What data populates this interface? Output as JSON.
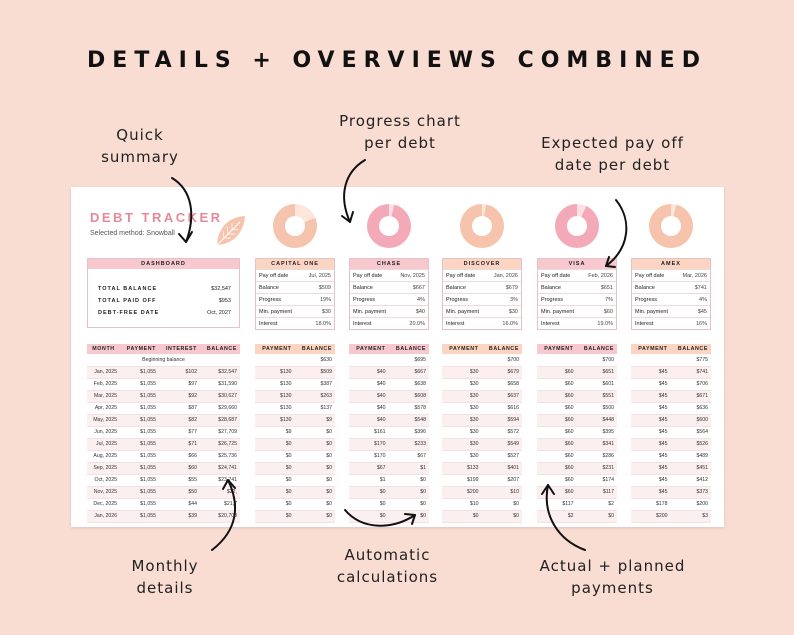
{
  "headline": "DETAILS + OVERVIEWS COMBINED",
  "callouts": {
    "quick_summary": [
      "Quick",
      "summary"
    ],
    "progress_chart": [
      "Progress chart",
      "per debt"
    ],
    "payoff_date": [
      "Expected pay off",
      "date per debt"
    ],
    "monthly_details": [
      "Monthly",
      "details"
    ],
    "auto_calc": [
      "Automatic",
      "calculations"
    ],
    "actual_planned": [
      "Actual + planned",
      "payments"
    ]
  },
  "tracker": {
    "title": "DEBT TRACKER",
    "method": "Selected method: Snowball"
  },
  "colors": {
    "pink": "#f7c9cf",
    "peach": "#fbd5c2",
    "donut_pink": "#f4a9b8",
    "donut_peach": "#f6c3ac"
  },
  "summary": {
    "header": "DASHBOARD",
    "rows": [
      {
        "label": "TOTAL BALANCE",
        "value": "$32,547"
      },
      {
        "label": "TOTAL PAID OFF",
        "value": "$953"
      },
      {
        "label": "DEBT-FREE DATE",
        "value": "Oct, 2027"
      }
    ]
  },
  "debts": [
    {
      "name": "CAPITAL ONE",
      "color": "peach",
      "progress": 0.19,
      "payoff": "Jul, 2025",
      "balance": "$509",
      "progress_label": "19%",
      "min_payment": "$30",
      "interest": "18.0%"
    },
    {
      "name": "CHASE",
      "color": "pink",
      "progress": 0.04,
      "payoff": "Nov, 2025",
      "balance": "$667",
      "progress_label": "4%",
      "min_payment": "$40",
      "interest": "20.0%"
    },
    {
      "name": "DISCOVER",
      "color": "peach",
      "progress": 0.03,
      "payoff": "Jan, 2026",
      "balance": "$679",
      "progress_label": "3%",
      "min_payment": "$30",
      "interest": "16.0%"
    },
    {
      "name": "VISA",
      "color": "pink",
      "progress": 0.07,
      "payoff": "Feb, 2026",
      "balance": "$651",
      "progress_label": "7%",
      "min_payment": "$60",
      "interest": "19.0%"
    },
    {
      "name": "AMEX",
      "color": "peach",
      "progress": 0.04,
      "payoff": "Mar, 2026",
      "balance": "$741",
      "progress_label": "4%",
      "min_payment": "$45",
      "interest": "16%"
    }
  ],
  "debt_row_labels": {
    "payoff": "Pay off date",
    "balance": "Balance",
    "progress": "Progress",
    "min_payment": "Min. payment",
    "interest": "Interest"
  },
  "monthly": {
    "headers": [
      "MONTH",
      "PAYMENT",
      "INTEREST",
      "BALANCE"
    ],
    "beginning": "Beginning balance",
    "rows": [
      [
        "Jan, 2025",
        "$1,055",
        "$102",
        "$32,547"
      ],
      [
        "Feb, 2025",
        "$1,055",
        "$97",
        "$31,590"
      ],
      [
        "Mar, 2025",
        "$1,055",
        "$92",
        "$30,627"
      ],
      [
        "Apr, 2025",
        "$1,055",
        "$87",
        "$29,660"
      ],
      [
        "May, 2025",
        "$1,055",
        "$82",
        "$28,687"
      ],
      [
        "Jun, 2025",
        "$1,055",
        "$77",
        "$27,709"
      ],
      [
        "Jul, 2025",
        "$1,055",
        "$71",
        "$26,725"
      ],
      [
        "Aug, 2025",
        "$1,055",
        "$66",
        "$25,736"
      ],
      [
        "Sep, 2025",
        "$1,055",
        "$60",
        "$24,741"
      ],
      [
        "Oct, 2025",
        "$1,055",
        "$55",
        "$23,741"
      ],
      [
        "Nov, 2025",
        "$1,055",
        "$50",
        "$22,"
      ],
      [
        "Dec, 2025",
        "$1,055",
        "$44",
        "$21,7"
      ],
      [
        "Jan, 2026",
        "$1,055",
        "$39",
        "$20,708"
      ]
    ]
  },
  "debt_tables": [
    {
      "headers": [
        "PAYMENT",
        "BALANCE"
      ],
      "start": "$630",
      "rows": [
        [
          "$130",
          "$509"
        ],
        [
          "$130",
          "$387"
        ],
        [
          "$130",
          "$263"
        ],
        [
          "$130",
          "$137"
        ],
        [
          "$130",
          "$9"
        ],
        [
          "$9",
          "$0"
        ],
        [
          "$0",
          "$0"
        ],
        [
          "$0",
          "$0"
        ],
        [
          "$0",
          "$0"
        ],
        [
          "$0",
          "$0"
        ],
        [
          "$0",
          "$0"
        ],
        [
          "$0",
          "$0"
        ],
        [
          "$0",
          "$0"
        ]
      ]
    },
    {
      "headers": [
        "PAYMENT",
        "BALANCE"
      ],
      "start": "$695",
      "rows": [
        [
          "$40",
          "$667"
        ],
        [
          "$40",
          "$638"
        ],
        [
          "$40",
          "$608"
        ],
        [
          "$40",
          "$578"
        ],
        [
          "$40",
          "$548"
        ],
        [
          "$161",
          "$396"
        ],
        [
          "$170",
          "$233"
        ],
        [
          "$170",
          "$67"
        ],
        [
          "$67",
          "$1"
        ],
        [
          "$1",
          "$0"
        ],
        [
          "$0",
          "$0"
        ],
        [
          "$0",
          "$0"
        ],
        [
          "$0",
          "$0"
        ]
      ]
    },
    {
      "headers": [
        "PAYMENT",
        "BALANCE"
      ],
      "start": "$700",
      "rows": [
        [
          "$30",
          "$679"
        ],
        [
          "$30",
          "$658"
        ],
        [
          "$30",
          "$637"
        ],
        [
          "$30",
          "$616"
        ],
        [
          "$30",
          "$594"
        ],
        [
          "$30",
          "$572"
        ],
        [
          "$30",
          "$549"
        ],
        [
          "$30",
          "$527"
        ],
        [
          "$133",
          "$401"
        ],
        [
          "$199",
          "$207"
        ],
        [
          "$200",
          "$10"
        ],
        [
          "$10",
          "$0"
        ],
        [
          "$0",
          "$0"
        ]
      ]
    },
    {
      "headers": [
        "PAYMENT",
        "BALANCE"
      ],
      "start": "$700",
      "rows": [
        [
          "$60",
          "$651"
        ],
        [
          "$60",
          "$601"
        ],
        [
          "$60",
          "$551"
        ],
        [
          "$60",
          "$500"
        ],
        [
          "$60",
          "$448"
        ],
        [
          "$60",
          "$395"
        ],
        [
          "$60",
          "$341"
        ],
        [
          "$60",
          "$286"
        ],
        [
          "$60",
          "$231"
        ],
        [
          "$60",
          "$174"
        ],
        [
          "$60",
          "$117"
        ],
        [
          "$117",
          "$2"
        ],
        [
          "$2",
          "$0"
        ]
      ]
    },
    {
      "headers": [
        "PAYMENT",
        "BALANCE"
      ],
      "start": "$775",
      "rows": [
        [
          "$45",
          "$741"
        ],
        [
          "$45",
          "$706"
        ],
        [
          "$45",
          "$671"
        ],
        [
          "$45",
          "$636"
        ],
        [
          "$45",
          "$600"
        ],
        [
          "$45",
          "$564"
        ],
        [
          "$45",
          "$526"
        ],
        [
          "$45",
          "$489"
        ],
        [
          "$45",
          "$451"
        ],
        [
          "$45",
          "$412"
        ],
        [
          "$45",
          "$373"
        ],
        [
          "$178",
          "$200"
        ],
        [
          "$200",
          "$3"
        ]
      ]
    }
  ]
}
